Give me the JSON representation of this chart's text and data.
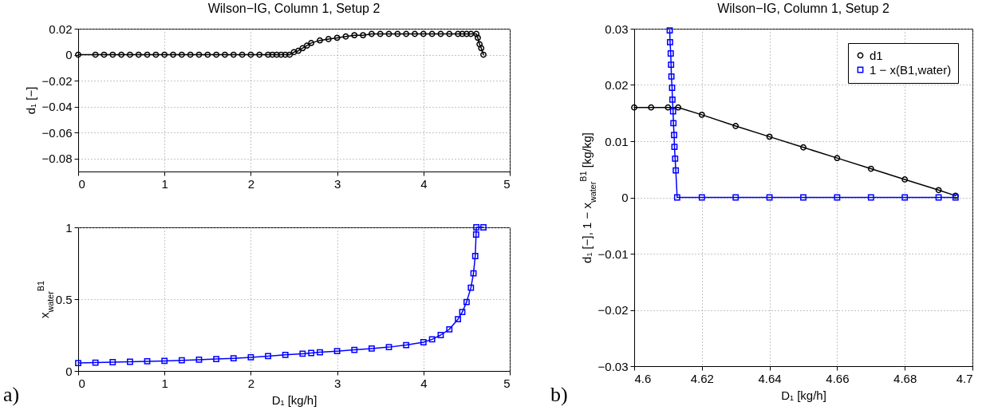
{
  "chart_data": [
    {
      "type": "line",
      "title": "Wilson−IG, Column 1, Setup 2",
      "ylabel": "d₁ [−]",
      "xlim": [
        0,
        5
      ],
      "xticks": [
        0,
        1,
        2,
        3,
        4,
        5
      ],
      "ylim": [
        -0.09,
        0.02
      ],
      "yticks": [
        -0.08,
        -0.06,
        -0.04,
        -0.02,
        0,
        0.02
      ],
      "grid": true,
      "legend": false,
      "series": [
        {
          "color": "#000000",
          "marker": "circle",
          "x": [
            0,
            0.2,
            0.3,
            0.4,
            0.5,
            0.6,
            0.7,
            0.8,
            0.9,
            1.0,
            1.1,
            1.2,
            1.3,
            1.4,
            1.5,
            1.6,
            1.7,
            1.8,
            1.9,
            2.0,
            2.1,
            2.2,
            2.25,
            2.3,
            2.35,
            2.4,
            2.45,
            2.5,
            2.55,
            2.6,
            2.65,
            2.7,
            2.8,
            2.9,
            3.0,
            3.1,
            3.2,
            3.3,
            3.4,
            3.5,
            3.6,
            3.7,
            3.8,
            3.9,
            4.0,
            4.1,
            4.2,
            4.3,
            4.4,
            4.45,
            4.5,
            4.55,
            4.613,
            4.63,
            4.65,
            4.67,
            4.695
          ],
          "values": [
            0,
            0,
            0,
            0,
            0,
            0,
            0,
            0,
            0,
            0,
            0,
            0,
            0,
            0,
            0,
            0,
            0,
            0,
            0,
            0,
            0,
            0,
            0,
            0,
            0,
            0,
            0,
            0.002,
            0.003,
            0.005,
            0.007,
            0.009,
            0.011,
            0.012,
            0.013,
            0.014,
            0.015,
            0.015,
            0.016,
            0.016,
            0.016,
            0.016,
            0.016,
            0.016,
            0.016,
            0.016,
            0.016,
            0.016,
            0.016,
            0.016,
            0.016,
            0.016,
            0.016,
            0.013,
            0.008,
            0.005,
            0
          ]
        }
      ]
    },
    {
      "type": "line",
      "xlabel": "D₁ [kg/h]",
      "ylabel": "x$_{water}$$^{B1}$",
      "xlim": [
        0,
        5
      ],
      "xticks": [
        0,
        1,
        2,
        3,
        4,
        5
      ],
      "ylim": [
        0,
        1
      ],
      "yticks": [
        0,
        0.5,
        1
      ],
      "grid": true,
      "legend": false,
      "annotations": [
        "a)"
      ],
      "series": [
        {
          "color": "#0000ff",
          "marker": "square",
          "x": [
            0,
            0.2,
            0.4,
            0.6,
            0.8,
            1.0,
            1.2,
            1.4,
            1.6,
            1.8,
            2.0,
            2.2,
            2.4,
            2.6,
            2.7,
            2.8,
            3.0,
            3.2,
            3.4,
            3.6,
            3.8,
            4.0,
            4.1,
            4.2,
            4.3,
            4.4,
            4.45,
            4.5,
            4.55,
            4.58,
            4.6,
            4.61,
            4.613,
            4.695
          ],
          "values": [
            0.055,
            0.058,
            0.061,
            0.064,
            0.067,
            0.07,
            0.074,
            0.078,
            0.083,
            0.088,
            0.095,
            0.103,
            0.112,
            0.12,
            0.125,
            0.13,
            0.138,
            0.147,
            0.156,
            0.166,
            0.18,
            0.2,
            0.22,
            0.25,
            0.29,
            0.36,
            0.41,
            0.48,
            0.58,
            0.68,
            0.8,
            0.95,
            1.0,
            1.0
          ]
        }
      ]
    },
    {
      "type": "line",
      "title": "Wilson−IG, Column 1, Setup 2",
      "xlabel": "D₁ [kg/h]",
      "ylabel": "d₁ [−], 1 − x$_{water}$$^{B1}$ [kg/kg]",
      "xlim": [
        4.6,
        4.7
      ],
      "xticks": [
        4.6,
        4.62,
        4.64,
        4.66,
        4.68,
        4.7
      ],
      "ylim": [
        -0.03,
        0.03
      ],
      "yticks": [
        -0.03,
        -0.02,
        -0.01,
        0,
        0.01,
        0.02,
        0.03
      ],
      "grid": true,
      "legend": "top right",
      "annotations": [
        "b)"
      ],
      "series": [
        {
          "name": "d1",
          "color": "#000000",
          "marker": "circle",
          "x": [
            4.6,
            4.605,
            4.61,
            4.613,
            4.62,
            4.63,
            4.64,
            4.65,
            4.66,
            4.67,
            4.68,
            4.69,
            4.695
          ],
          "values": [
            0.016,
            0.016,
            0.016,
            0.016,
            0.0147,
            0.0127,
            0.0108,
            0.0089,
            0.007,
            0.0051,
            0.0032,
            0.0013,
            0.0003
          ]
        },
        {
          "name": "1 − x(B1,water)",
          "color": "#0000ff",
          "marker": "square",
          "x": [
            4.6105,
            4.6106,
            4.6108,
            4.6109,
            4.611,
            4.6112,
            4.6113,
            4.6115,
            4.6116,
            4.6118,
            4.6119,
            4.6121,
            4.6123,
            4.6127,
            4.62,
            4.63,
            4.64,
            4.65,
            4.66,
            4.67,
            4.68,
            4.69,
            4.695
          ],
          "values": [
            0.0297,
            0.0276,
            0.0256,
            0.0236,
            0.0215,
            0.0195,
            0.0174,
            0.0153,
            0.0132,
            0.0111,
            0.009,
            0.0069,
            0.0048,
            0,
            0,
            0,
            0,
            0,
            0,
            0,
            0,
            0,
            0
          ]
        }
      ]
    }
  ]
}
